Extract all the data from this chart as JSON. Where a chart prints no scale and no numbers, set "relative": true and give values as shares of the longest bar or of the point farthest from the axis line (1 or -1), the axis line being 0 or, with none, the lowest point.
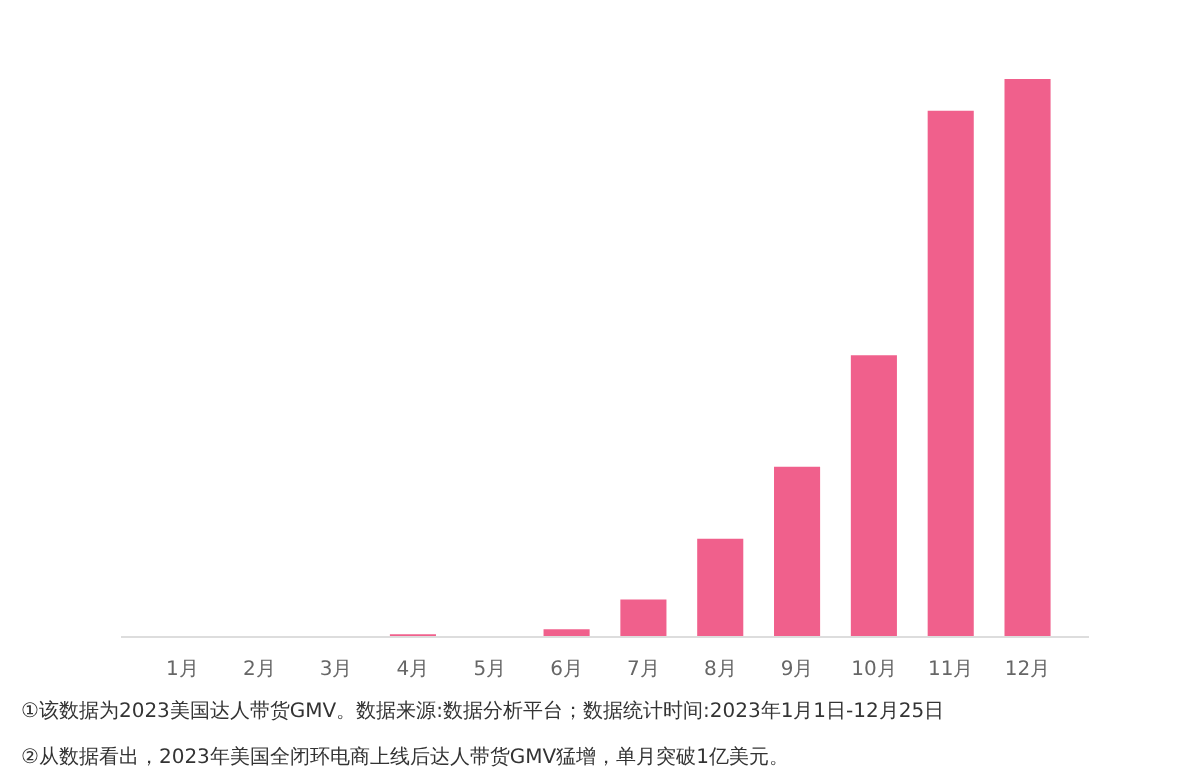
{
  "chart_data": {
    "type": "bar",
    "relative": true,
    "categories": [
      "1月",
      "2月",
      "3月",
      "4月",
      "5月",
      "6月",
      "7月",
      "8月",
      "9月",
      "10月",
      "11月",
      "12月"
    ],
    "values": [
      null,
      null,
      null,
      0.005,
      null,
      0.014,
      0.067,
      0.176,
      0.305,
      0.505,
      0.943,
      1
    ],
    "color": "#f0608c",
    "grid": false,
    "annotations": [
      "①该数据为2023美国达人带货GMV。数据来源:数据分析平台；数据统计时间:2023年1月1日-12月25日",
      "②从数据看出，2023年美国全闭环电商上线后达人带货GMV猛增，单月突破1亿美元。"
    ]
  }
}
